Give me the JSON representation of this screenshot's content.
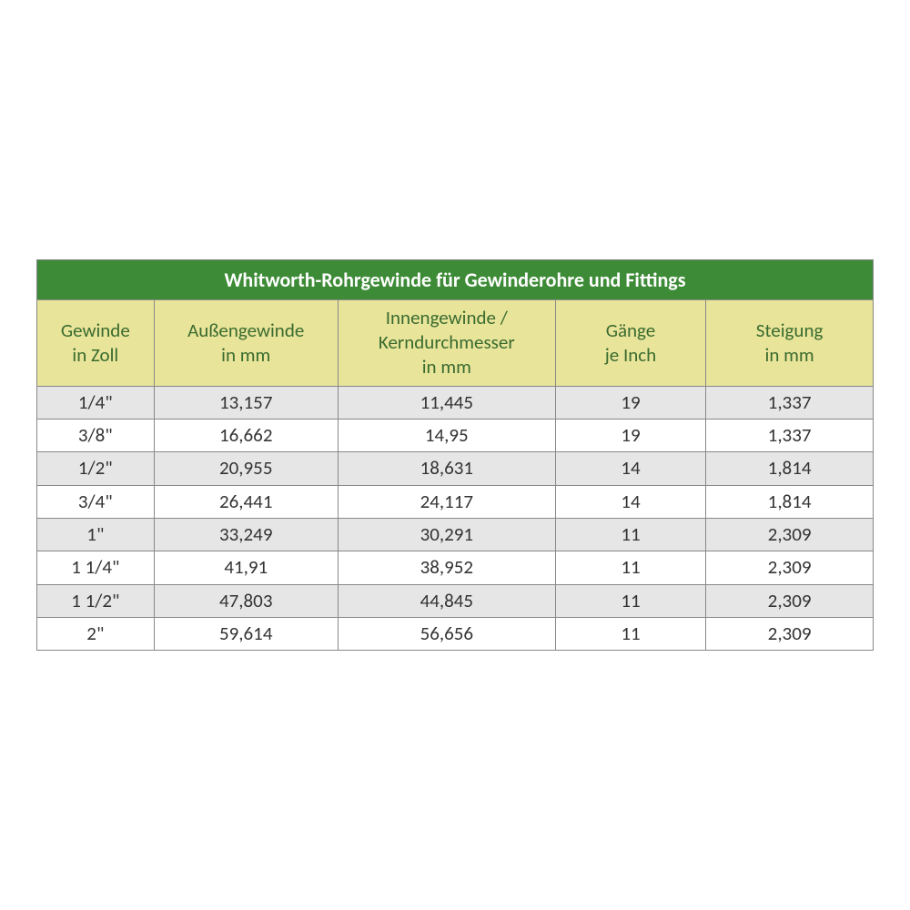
{
  "table": {
    "type": "table",
    "title": "Whitworth-Rohrgewinde für Gewinderohre und Fittings",
    "title_bg_color": "#3d8b37",
    "title_text_color": "#ffffff",
    "title_fontsize": 22,
    "header_bg_color": "#e8e49a",
    "header_text_color": "#3a6b2f",
    "header_fontsize": 21,
    "cell_fontsize": 21,
    "cell_text_color": "#333333",
    "border_color": "#888888",
    "row_odd_bg": "#e6e6e6",
    "row_even_bg": "#ffffff",
    "columns": [
      {
        "label_line1": "Gewinde",
        "label_line2": "in Zoll",
        "width_pct": 14
      },
      {
        "label_line1": "Außengewinde",
        "label_line2": "in mm",
        "width_pct": 22
      },
      {
        "label_line1": "Innengewinde /",
        "label_line2": "Kerndurchmesser",
        "label_line3": "in mm",
        "width_pct": 26
      },
      {
        "label_line1": "Gänge",
        "label_line2": "je Inch",
        "width_pct": 18
      },
      {
        "label_line1": "Steigung",
        "label_line2": "in mm",
        "width_pct": 20
      }
    ],
    "rows": [
      [
        "1/4\"",
        "13,157",
        "11,445",
        "19",
        "1,337"
      ],
      [
        "3/8\"",
        "16,662",
        "14,95",
        "19",
        "1,337"
      ],
      [
        "1/2\"",
        "20,955",
        "18,631",
        "14",
        "1,814"
      ],
      [
        "3/4\"",
        "26,441",
        "24,117",
        "14",
        "1,814"
      ],
      [
        "1\"",
        "33,249",
        "30,291",
        "11",
        "2,309"
      ],
      [
        "1 1/4\"",
        "41,91",
        "38,952",
        "11",
        "2,309"
      ],
      [
        "1 1/2\"",
        "47,803",
        "44,845",
        "11",
        "2,309"
      ],
      [
        "2\"",
        "59,614",
        "56,656",
        "11",
        "2,309"
      ]
    ]
  }
}
